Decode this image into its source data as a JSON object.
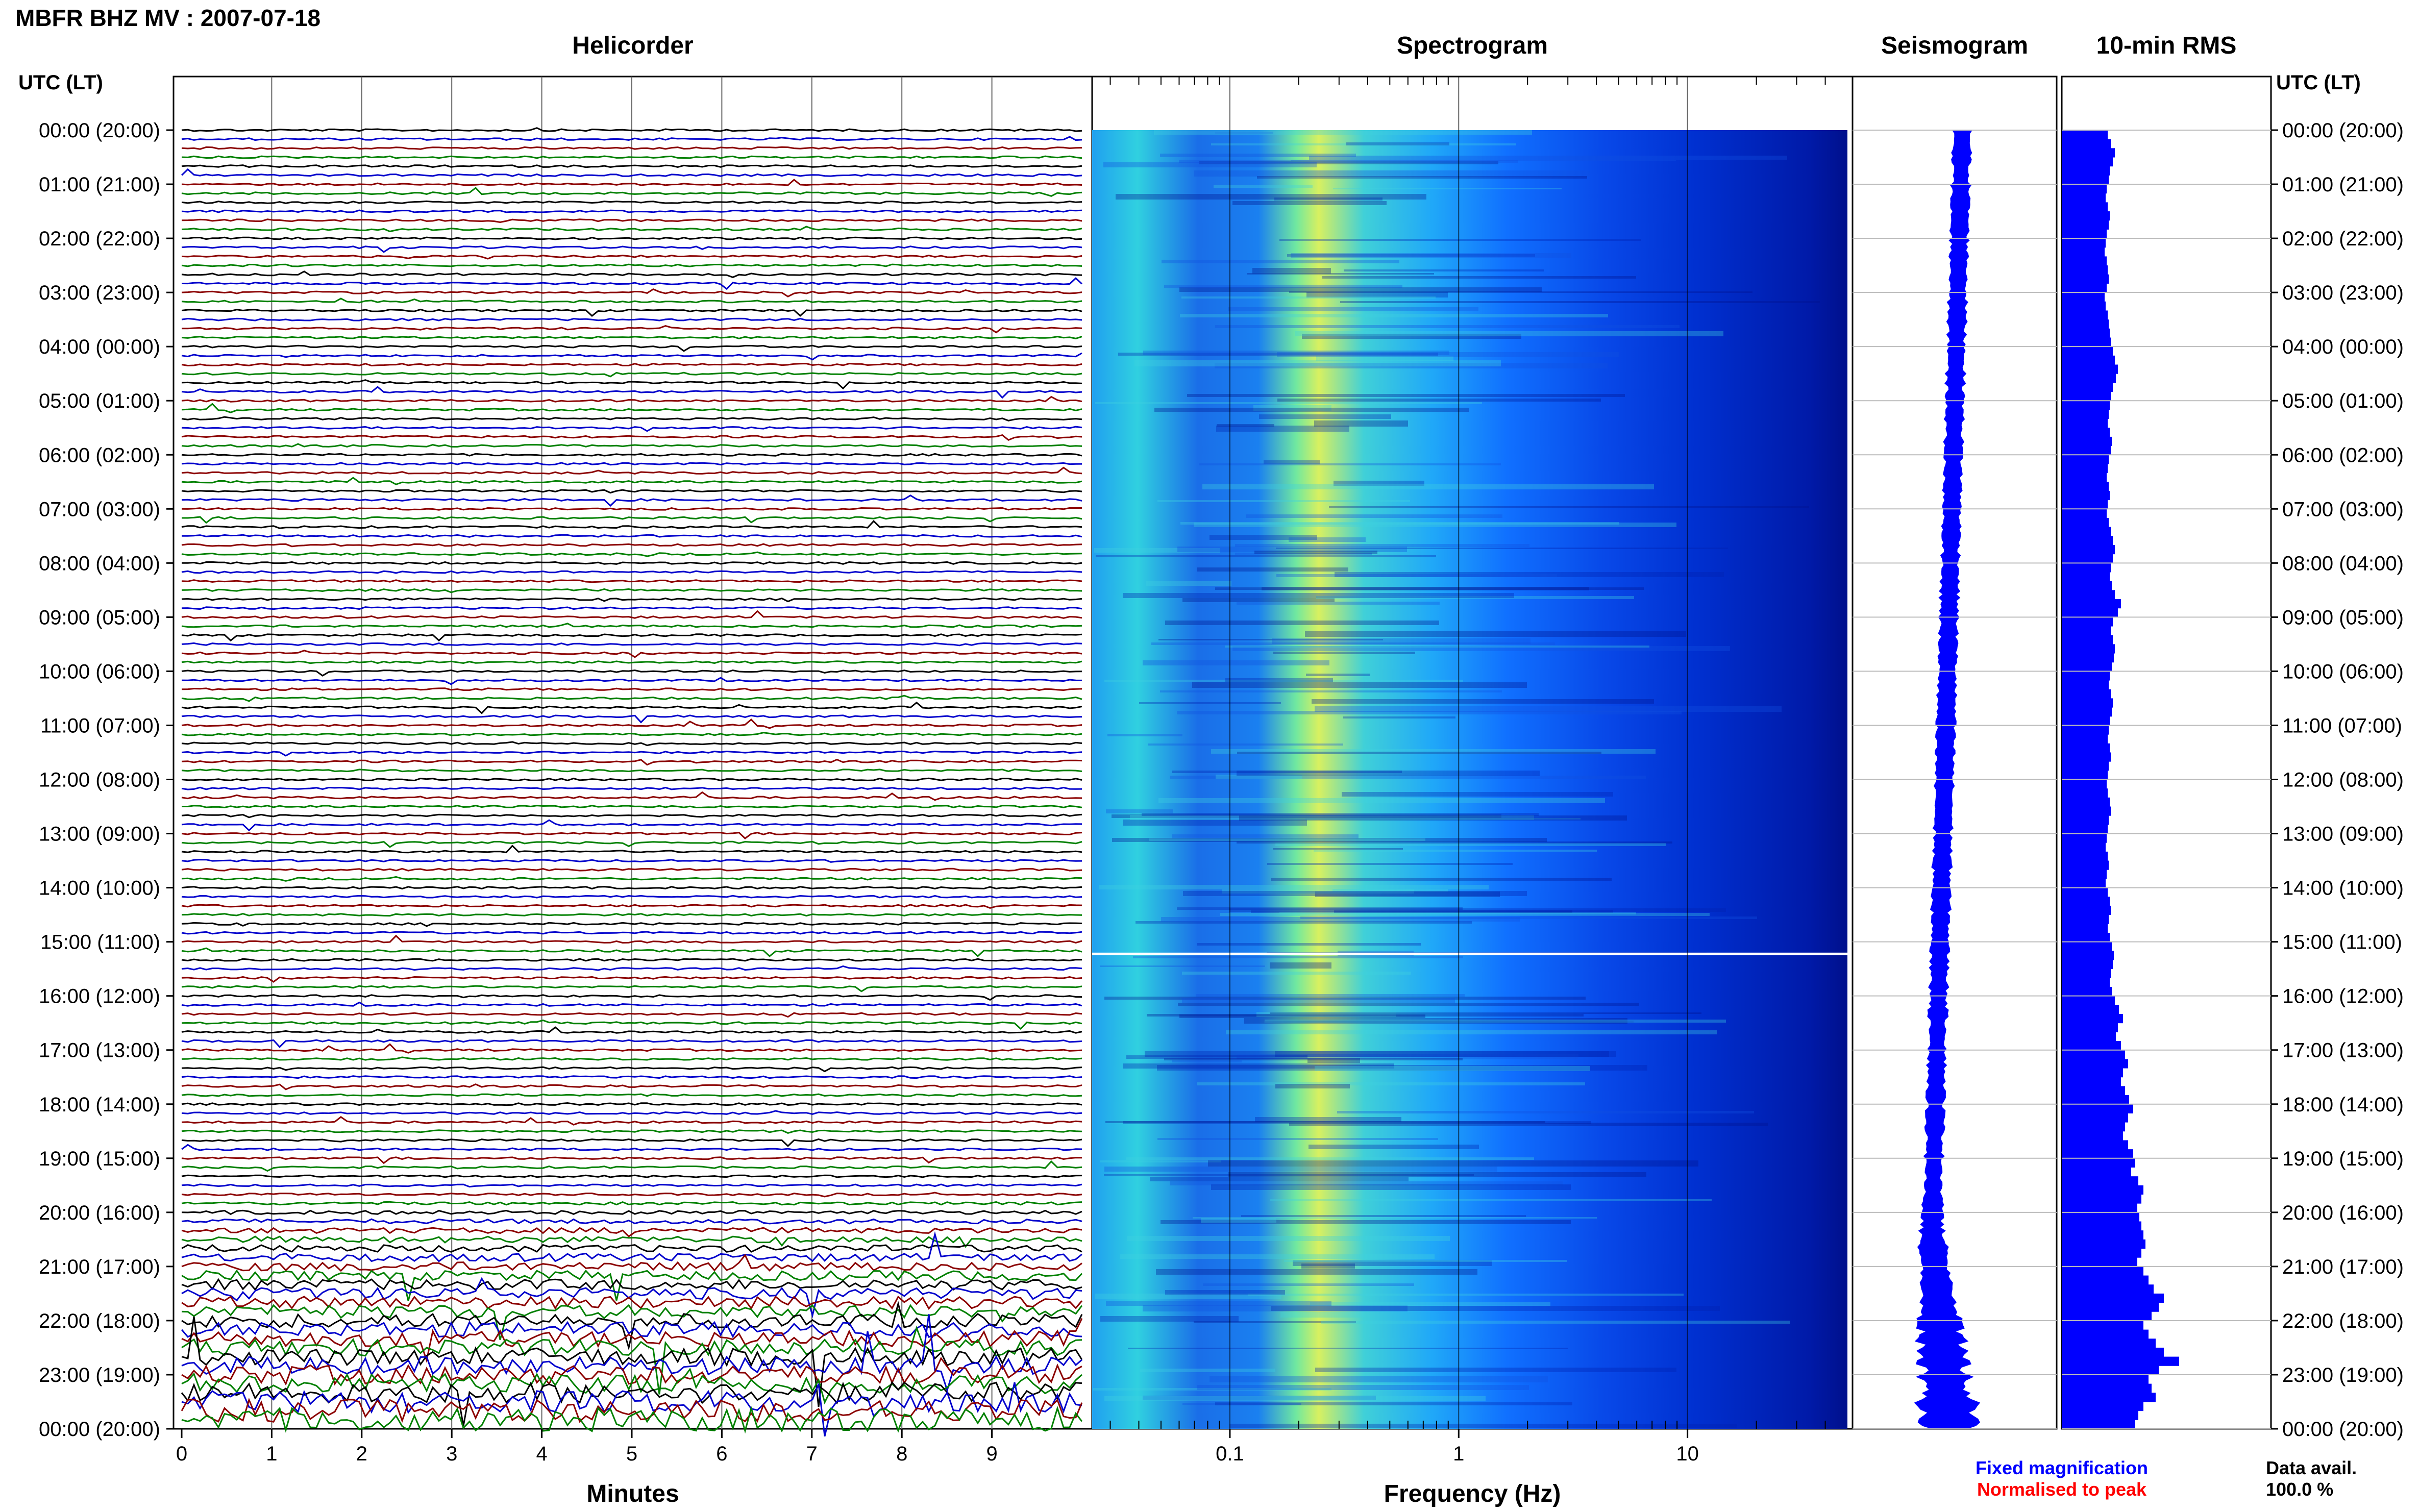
{
  "header": {
    "title": "MBFR BHZ MV : 2007-07-18"
  },
  "panels": {
    "helicorder": "Helicorder",
    "spectrogram": "Spectrogram",
    "seismogram": "Seismogram",
    "rms": "10-min RMS"
  },
  "utc_header_left": "UTC (LT)",
  "utc_header_right": "UTC (LT)",
  "time_labels": [
    "00:00 (20:00)",
    "01:00 (21:00)",
    "02:00 (22:00)",
    "03:00 (23:00)",
    "04:00 (00:00)",
    "05:00 (01:00)",
    "06:00 (02:00)",
    "07:00 (03:00)",
    "08:00 (04:00)",
    "09:00 (05:00)",
    "10:00 (06:00)",
    "11:00 (07:00)",
    "12:00 (08:00)",
    "13:00 (09:00)",
    "14:00 (10:00)",
    "15:00 (11:00)",
    "16:00 (12:00)",
    "17:00 (13:00)",
    "18:00 (14:00)",
    "19:00 (15:00)",
    "20:00 (16:00)",
    "21:00 (17:00)",
    "22:00 (18:00)",
    "23:00 (19:00)",
    "00:00 (20:00)"
  ],
  "legend": {
    "fixed": "Fixed magnification",
    "normalised": "Normalised to peak",
    "fixed_color": "#0000ff",
    "normalised_color": "#ff0000"
  },
  "availability": {
    "label": "Data avail.",
    "value": "100.0 %"
  },
  "chart_data": [
    {
      "type": "line",
      "title": "Helicorder",
      "xlabel": "Minutes",
      "xlim": [
        0,
        10
      ],
      "xticks": [
        "0",
        "1",
        "2",
        "3",
        "4",
        "5",
        "6",
        "7",
        "8",
        "9"
      ],
      "trace_colors": [
        "#000000",
        "#0000cc",
        "#8b0000",
        "#008000"
      ],
      "rows_per_hour": 6,
      "hours": 24
    },
    {
      "type": "heatmap",
      "title": "Spectrogram",
      "xlabel": "Frequency (Hz)",
      "xscale": "log",
      "xlim": [
        0.025,
        50
      ],
      "xticks": [
        "0.1",
        "1",
        "10"
      ],
      "colormap": [
        "#0000a0",
        "#0030e0",
        "#1070ff",
        "#20b0ff",
        "#30d8e0",
        "#80f0a0",
        "#d8f060"
      ]
    },
    {
      "type": "line",
      "title": "Seismogram",
      "envelope_color": "#0000ff"
    },
    {
      "type": "bar",
      "title": "10-min RMS",
      "bar_color": "#0000ff",
      "relative_values": [
        0.45,
        0.48,
        0.52,
        0.5,
        0.47,
        0.46,
        0.44,
        0.43,
        0.45,
        0.47,
        0.46,
        0.44,
        0.43,
        0.42,
        0.44,
        0.45,
        0.46,
        0.44,
        0.42,
        0.43,
        0.45,
        0.46,
        0.47,
        0.48,
        0.5,
        0.52,
        0.55,
        0.53,
        0.5,
        0.48,
        0.47,
        0.46,
        0.45,
        0.47,
        0.49,
        0.48,
        0.46,
        0.45,
        0.44,
        0.46,
        0.47,
        0.45,
        0.44,
        0.46,
        0.48,
        0.5,
        0.52,
        0.5,
        0.48,
        0.47,
        0.49,
        0.52,
        0.58,
        0.55,
        0.5,
        0.48,
        0.5,
        0.52,
        0.51,
        0.49,
        0.47,
        0.46,
        0.48,
        0.5,
        0.49,
        0.47,
        0.46,
        0.45,
        0.47,
        0.48,
        0.46,
        0.45,
        0.44,
        0.45,
        0.47,
        0.48,
        0.46,
        0.45,
        0.44,
        0.43,
        0.45,
        0.46,
        0.44,
        0.43,
        0.45,
        0.47,
        0.48,
        0.46,
        0.45,
        0.47,
        0.49,
        0.51,
        0.5,
        0.48,
        0.47,
        0.49,
        0.52,
        0.56,
        0.6,
        0.55,
        0.53,
        0.58,
        0.62,
        0.65,
        0.6,
        0.58,
        0.62,
        0.66,
        0.7,
        0.65,
        0.62,
        0.6,
        0.65,
        0.7,
        0.72,
        0.68,
        0.75,
        0.8,
        0.78,
        0.74,
        0.76,
        0.78,
        0.8,
        0.82,
        0.78,
        0.74,
        0.8,
        0.85,
        0.9,
        1.0,
        0.95,
        0.88,
        0.8,
        0.85,
        0.92,
        1.0,
        1.15,
        0.95,
        0.85,
        0.88,
        0.92,
        0.8,
        0.75,
        0.72
      ]
    }
  ]
}
